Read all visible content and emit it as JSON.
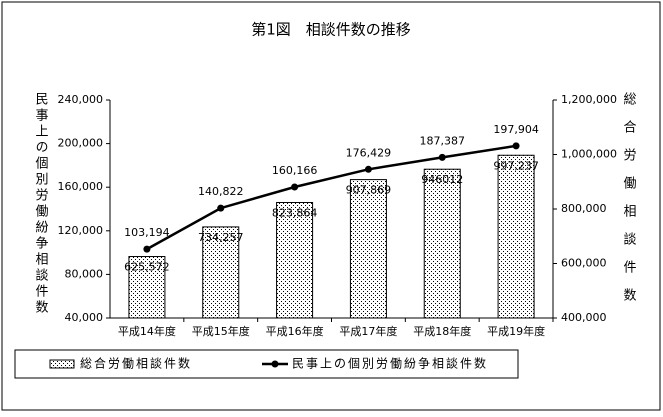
{
  "chart_data": {
    "type": "combo",
    "title": "第1図　相談件数の推移",
    "categories": [
      "平成14年度",
      "平成15年度",
      "平成16年度",
      "平成17年度",
      "平成18年度",
      "平成19年度"
    ],
    "y_label": "民事上の個別労働紛争相談件数",
    "y2_label": "総合労働相談件数",
    "series": [
      {
        "name": "総合労働相談件数",
        "type": "bar",
        "axis": "y2",
        "color": "#000000",
        "values": [
          625572,
          734257,
          823864,
          907869,
          946012,
          997237
        ],
        "value_labels": [
          "625,572",
          "734,257",
          "823,864",
          "907,869",
          "946012",
          "997,237"
        ]
      },
      {
        "name": "民事上の個別労働紛争相談件数",
        "type": "line",
        "color": "#000000",
        "values": [
          103194,
          140822,
          160166,
          176429,
          187387,
          197904
        ],
        "value_labels": [
          "103,194",
          "140,822",
          "160,166",
          "176,429",
          "187,387",
          "197,904"
        ]
      }
    ],
    "ylim": [
      40000,
      240000
    ],
    "yticks": [
      {
        "value": 40000,
        "label": "40,000"
      },
      {
        "value": 80000,
        "label": "80,000"
      },
      {
        "value": 120000,
        "label": "120,000"
      },
      {
        "value": 160000,
        "label": "160,000"
      },
      {
        "value": 200000,
        "label": "200,000"
      },
      {
        "value": 240000,
        "label": "240,000"
      }
    ],
    "y2lim": [
      400000,
      1200000
    ],
    "y2ticks": [
      {
        "value": 400000,
        "label": "400,000"
      },
      {
        "value": 600000,
        "label": "600,000"
      },
      {
        "value": 800000,
        "label": "800,000"
      },
      {
        "value": 1000000,
        "label": "1,000,000"
      },
      {
        "value": 1200000,
        "label": "1,200,000"
      }
    ],
    "legend": "bottom"
  }
}
